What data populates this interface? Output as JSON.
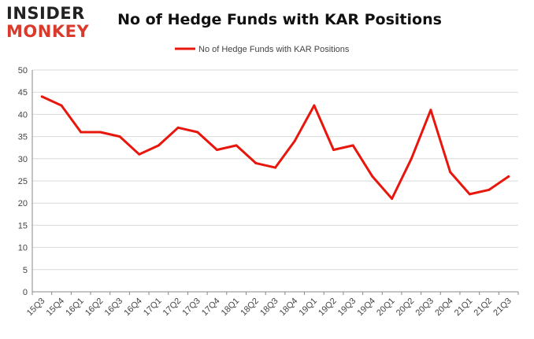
{
  "logo": {
    "line1": "INSIDER",
    "line2": "MONKEY"
  },
  "chart_data": {
    "type": "line",
    "title": "No of Hedge Funds with KAR Positions",
    "xlabel": "",
    "ylabel": "",
    "categories": [
      "15Q3",
      "15Q4",
      "16Q1",
      "16Q2",
      "16Q3",
      "16Q4",
      "17Q1",
      "17Q2",
      "17Q3",
      "17Q4",
      "18Q1",
      "18Q2",
      "18Q3",
      "18Q4",
      "19Q1",
      "19Q2",
      "19Q3",
      "19Q4",
      "20Q1",
      "20Q2",
      "20Q3",
      "20Q4",
      "21Q1",
      "21Q2",
      "21Q3"
    ],
    "series": [
      {
        "name": "No of Hedge Funds with KAR Positions",
        "values": [
          44,
          42,
          36,
          36,
          35,
          31,
          33,
          37,
          36,
          32,
          33,
          29,
          28,
          34,
          42,
          32,
          33,
          26,
          21,
          30,
          41,
          27,
          22,
          23,
          26
        ]
      }
    ],
    "ylim": [
      0,
      50
    ],
    "yticks": [
      0,
      5,
      10,
      15,
      20,
      25,
      30,
      35,
      40,
      45,
      50
    ],
    "grid": true,
    "legend": "top-center",
    "colors": {
      "line": "#e8170d",
      "grid": "#d9d9d9",
      "axis": "#888888",
      "text": "#444444"
    }
  }
}
